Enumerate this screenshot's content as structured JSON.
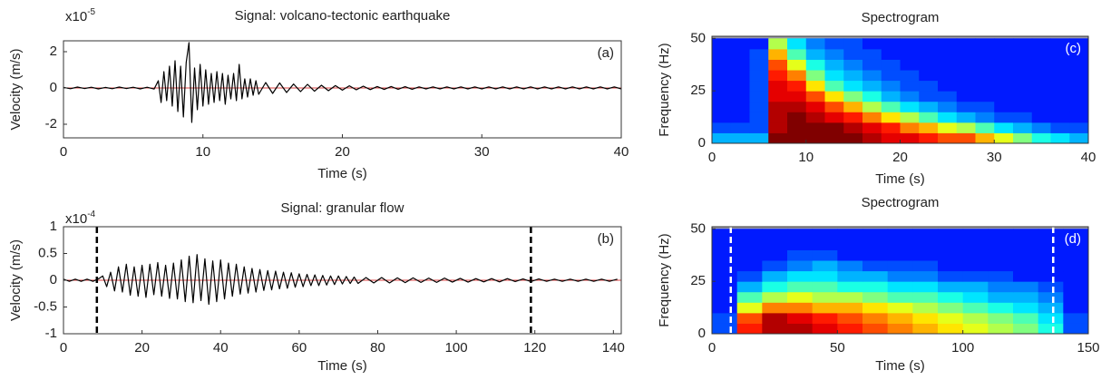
{
  "chart_data": [
    {
      "type": "line",
      "title": "Signal: volcano-tectonic earthquake",
      "xlabel": "Time (s)",
      "ylabel": "Velocity (m/s)",
      "annotation": "(a)",
      "y_multiplier": "x10",
      "y_exponent": "-5",
      "color": "#000000",
      "xlim": [
        0,
        40
      ],
      "xticks": [
        0,
        10,
        20,
        30,
        40
      ],
      "ylim": [
        -2.75,
        2.6
      ],
      "yticks": [
        -2,
        0,
        2
      ],
      "x": [
        0,
        0.5,
        1,
        1.5,
        2,
        2.5,
        3,
        3.5,
        4,
        4.5,
        5,
        5.5,
        6,
        6.5,
        6.8,
        7.0,
        7.2,
        7.4,
        7.6,
        7.8,
        8.0,
        8.2,
        8.4,
        8.6,
        8.8,
        9.0,
        9.2,
        9.4,
        9.6,
        9.8,
        10.0,
        10.2,
        10.4,
        10.6,
        10.8,
        11.0,
        11.2,
        11.4,
        11.6,
        11.8,
        12.0,
        12.2,
        12.4,
        12.6,
        12.8,
        13.0,
        13.2,
        13.4,
        13.6,
        13.8,
        14.0,
        14.5,
        15,
        15.5,
        16,
        16.5,
        17,
        17.5,
        18,
        18.5,
        19,
        19.5,
        20,
        20.5,
        21,
        21.5,
        22,
        22.5,
        23,
        23.5,
        24,
        24.5,
        25,
        25.5,
        26,
        26.5,
        27,
        27.5,
        28,
        28.5,
        29,
        29.5,
        30,
        30.5,
        31,
        31.5,
        32,
        32.5,
        33,
        33.5,
        34,
        34.5,
        35,
        35.5,
        36,
        36.5,
        37,
        37.5,
        38,
        38.5,
        39,
        39.5,
        40
      ],
      "values": [
        0.03,
        -0.04,
        0.05,
        -0.03,
        0.04,
        -0.05,
        0.03,
        -0.04,
        0.05,
        -0.03,
        0.04,
        -0.05,
        0.04,
        -0.06,
        0.4,
        -0.8,
        0.9,
        -0.7,
        1.2,
        -1.0,
        1.5,
        -1.3,
        1.2,
        -1.6,
        1.4,
        2.5,
        -1.9,
        1.1,
        -1.2,
        1.3,
        -1.0,
        1.0,
        -0.9,
        0.8,
        -0.8,
        0.9,
        -0.7,
        0.8,
        -0.9,
        0.7,
        -0.6,
        0.8,
        -0.7,
        1.3,
        -0.6,
        0.5,
        -0.5,
        0.5,
        -0.4,
        0.4,
        -0.35,
        0.3,
        -0.3,
        0.28,
        -0.25,
        0.22,
        -0.2,
        0.2,
        -0.18,
        0.15,
        -0.15,
        0.13,
        -0.12,
        0.12,
        -0.1,
        0.1,
        -0.09,
        0.08,
        -0.08,
        0.08,
        -0.07,
        0.07,
        -0.07,
        0.06,
        -0.05,
        0.06,
        -0.05,
        0.06,
        -0.05,
        0.06,
        -0.05,
        0.06,
        -0.05,
        0.06,
        -0.05,
        0.06,
        -0.05,
        0.06,
        -0.05,
        0.06,
        -0.05,
        0.06,
        -0.05,
        0.06,
        -0.05,
        0.06,
        -0.05,
        0.06,
        -0.05,
        0.06,
        -0.05,
        0.06,
        -0.05
      ]
    },
    {
      "type": "line",
      "title": "Signal: granular flow",
      "xlabel": "Time (s)",
      "ylabel": "Velocity (m/s)",
      "annotation": "(b)",
      "y_multiplier": "x10",
      "y_exponent": "-4",
      "color": "#000000",
      "xlim": [
        0,
        142
      ],
      "xticks": [
        0,
        20,
        40,
        60,
        80,
        100,
        120,
        140
      ],
      "ylim": [
        -1,
        1
      ],
      "yticks": [
        -1,
        -0.5,
        0,
        0.5,
        1
      ],
      "vlines": [
        8.5,
        119
      ],
      "vline_color": "#000000",
      "x": [
        0,
        1.5,
        3,
        4.5,
        6,
        7.5,
        9,
        10,
        11,
        12,
        13,
        14,
        15,
        16,
        17,
        18,
        19,
        20,
        21,
        22,
        23,
        24,
        25,
        26,
        27,
        28,
        29,
        30,
        31,
        32,
        33,
        34,
        35,
        36,
        37,
        38,
        39,
        40,
        41,
        42,
        43,
        44,
        45,
        46,
        47,
        48,
        49,
        50,
        51,
        52,
        53,
        54,
        55,
        56,
        57,
        58,
        59,
        60,
        61,
        62,
        63,
        64,
        65,
        66,
        67,
        68,
        69,
        70,
        71,
        72,
        73,
        74,
        75,
        77,
        79,
        81,
        83,
        85,
        87,
        89,
        91,
        93,
        95,
        97,
        99,
        101,
        103,
        105,
        107,
        109,
        111,
        113,
        115,
        117,
        119,
        121,
        123,
        125,
        127,
        129,
        131,
        133,
        135,
        137,
        139,
        141
      ],
      "values": [
        0.02,
        -0.02,
        0.02,
        -0.02,
        0.02,
        -0.02,
        0.03,
        0.08,
        -0.12,
        0.15,
        -0.2,
        0.25,
        -0.22,
        0.3,
        -0.28,
        0.25,
        -0.3,
        0.28,
        -0.32,
        0.3,
        -0.27,
        0.33,
        -0.3,
        0.28,
        -0.34,
        0.32,
        -0.35,
        0.38,
        -0.4,
        0.45,
        -0.42,
        0.48,
        -0.38,
        0.4,
        -0.45,
        0.36,
        -0.4,
        0.38,
        -0.35,
        0.32,
        -0.3,
        0.3,
        -0.26,
        0.25,
        -0.24,
        0.22,
        -0.22,
        0.2,
        -0.19,
        0.18,
        -0.18,
        0.17,
        -0.16,
        0.15,
        -0.15,
        0.14,
        -0.13,
        0.12,
        -0.12,
        0.11,
        -0.1,
        0.1,
        -0.1,
        0.09,
        -0.09,
        0.08,
        -0.08,
        0.08,
        -0.07,
        0.07,
        -0.06,
        0.06,
        -0.06,
        0.05,
        -0.05,
        0.05,
        -0.05,
        0.045,
        -0.045,
        0.045,
        -0.04,
        0.04,
        -0.04,
        0.04,
        -0.035,
        0.035,
        -0.035,
        0.03,
        -0.03,
        0.03,
        -0.03,
        0.03,
        -0.025,
        0.025,
        -0.025,
        0.025,
        -0.02,
        0.02,
        -0.02,
        0.02,
        -0.02,
        0.02,
        -0.02,
        0.02,
        -0.02,
        0.02
      ]
    },
    {
      "type": "heatmap",
      "title": "Spectrogram",
      "xlabel": "Time (s)",
      "ylabel": "Frequency (Hz)",
      "annotation": "(c)",
      "colormap": "jet",
      "zlim": [
        0,
        1
      ],
      "xlim": [
        0,
        40
      ],
      "xticks": [
        0,
        10,
        20,
        30,
        40
      ],
      "ylim": [
        0,
        51
      ],
      "yticks": [
        0,
        25,
        50
      ],
      "xbins": [
        0,
        2,
        4,
        6,
        8,
        10,
        12,
        14,
        16,
        18,
        20,
        22,
        24,
        26,
        28,
        30,
        32,
        34,
        36,
        38,
        40
      ],
      "ybins": [
        0,
        5,
        10,
        15,
        20,
        25,
        30,
        35,
        40,
        45,
        50
      ],
      "z": [
        [
          0.3,
          0.3,
          0.3,
          1,
          1,
          1,
          1,
          1,
          0.95,
          0.9,
          0.9,
          0.85,
          0.8,
          0.8,
          0.7,
          0.6,
          0.5,
          0.4,
          0.35,
          0.3
        ],
        [
          0.2,
          0.2,
          0.2,
          0.95,
          1,
          1,
          1,
          0.95,
          0.9,
          0.85,
          0.75,
          0.7,
          0.6,
          0.55,
          0.45,
          0.35,
          0.3,
          0.25,
          0.2,
          0.2
        ],
        [
          0.15,
          0.15,
          0.2,
          0.95,
          1,
          0.95,
          0.9,
          0.85,
          0.75,
          0.65,
          0.55,
          0.45,
          0.35,
          0.3,
          0.25,
          0.2,
          0.2,
          0.15,
          0.15,
          0.15
        ],
        [
          0.15,
          0.15,
          0.2,
          0.95,
          0.95,
          0.9,
          0.8,
          0.7,
          0.55,
          0.45,
          0.35,
          0.3,
          0.25,
          0.2,
          0.2,
          0.15,
          0.15,
          0.15,
          0.15,
          0.15
        ],
        [
          0.15,
          0.15,
          0.2,
          0.9,
          0.9,
          0.8,
          0.65,
          0.5,
          0.4,
          0.3,
          0.25,
          0.2,
          0.2,
          0.15,
          0.15,
          0.15,
          0.15,
          0.15,
          0.15,
          0.15
        ],
        [
          0.15,
          0.15,
          0.2,
          0.9,
          0.85,
          0.65,
          0.45,
          0.35,
          0.3,
          0.25,
          0.2,
          0.2,
          0.15,
          0.15,
          0.15,
          0.15,
          0.15,
          0.15,
          0.15,
          0.15
        ],
        [
          0.15,
          0.15,
          0.2,
          0.85,
          0.75,
          0.5,
          0.35,
          0.3,
          0.25,
          0.2,
          0.2,
          0.15,
          0.15,
          0.15,
          0.15,
          0.15,
          0.15,
          0.15,
          0.15,
          0.15
        ],
        [
          0.15,
          0.15,
          0.2,
          0.8,
          0.6,
          0.4,
          0.3,
          0.25,
          0.2,
          0.2,
          0.15,
          0.15,
          0.15,
          0.15,
          0.15,
          0.15,
          0.15,
          0.15,
          0.15,
          0.15
        ],
        [
          0.15,
          0.15,
          0.2,
          0.7,
          0.45,
          0.3,
          0.25,
          0.2,
          0.2,
          0.15,
          0.15,
          0.15,
          0.15,
          0.15,
          0.15,
          0.15,
          0.15,
          0.15,
          0.15,
          0.15
        ],
        [
          0.15,
          0.15,
          0.15,
          0.55,
          0.35,
          0.25,
          0.2,
          0.2,
          0.15,
          0.15,
          0.15,
          0.15,
          0.15,
          0.15,
          0.15,
          0.15,
          0.15,
          0.15,
          0.15,
          0.15
        ]
      ]
    },
    {
      "type": "heatmap",
      "title": "Spectrogram",
      "xlabel": "Time (s)",
      "ylabel": "Frequency (Hz)",
      "annotation": "(d)",
      "colormap": "jet",
      "zlim": [
        0,
        1
      ],
      "xlim": [
        0,
        150
      ],
      "xticks": [
        0,
        50,
        100,
        150
      ],
      "ylim": [
        0,
        51
      ],
      "yticks": [
        0,
        25,
        50
      ],
      "vlines": [
        7.5,
        136
      ],
      "vline_color": "#ffffff",
      "xbins": [
        0,
        10,
        20,
        30,
        40,
        50,
        60,
        70,
        80,
        90,
        100,
        110,
        120,
        130,
        140,
        150
      ],
      "ybins": [
        0,
        5,
        10,
        15,
        20,
        25,
        30,
        35,
        40,
        45,
        50
      ],
      "z": [
        [
          0.2,
          0.85,
          0.95,
          0.95,
          0.9,
          0.85,
          0.8,
          0.75,
          0.7,
          0.65,
          0.6,
          0.55,
          0.5,
          0.4,
          0.2
        ],
        [
          0.2,
          0.8,
          0.95,
          0.9,
          0.85,
          0.8,
          0.75,
          0.7,
          0.65,
          0.6,
          0.55,
          0.5,
          0.45,
          0.35,
          0.2
        ],
        [
          0.15,
          0.6,
          0.75,
          0.75,
          0.7,
          0.7,
          0.65,
          0.6,
          0.55,
          0.5,
          0.45,
          0.4,
          0.35,
          0.3,
          0.15
        ],
        [
          0.15,
          0.45,
          0.55,
          0.6,
          0.55,
          0.55,
          0.5,
          0.45,
          0.45,
          0.4,
          0.35,
          0.3,
          0.3,
          0.25,
          0.15
        ],
        [
          0.15,
          0.3,
          0.4,
          0.45,
          0.45,
          0.4,
          0.4,
          0.35,
          0.35,
          0.3,
          0.3,
          0.25,
          0.25,
          0.2,
          0.15
        ],
        [
          0.15,
          0.2,
          0.3,
          0.35,
          0.35,
          0.3,
          0.3,
          0.25,
          0.25,
          0.2,
          0.2,
          0.2,
          0.15,
          0.15,
          0.15
        ],
        [
          0.15,
          0.15,
          0.2,
          0.25,
          0.3,
          0.25,
          0.2,
          0.2,
          0.2,
          0.15,
          0.15,
          0.15,
          0.15,
          0.15,
          0.15
        ],
        [
          0.15,
          0.15,
          0.15,
          0.2,
          0.2,
          0.15,
          0.15,
          0.15,
          0.15,
          0.15,
          0.15,
          0.15,
          0.15,
          0.15,
          0.15
        ],
        [
          0.15,
          0.15,
          0.15,
          0.15,
          0.15,
          0.15,
          0.15,
          0.15,
          0.15,
          0.15,
          0.15,
          0.15,
          0.15,
          0.15,
          0.15
        ],
        [
          0.15,
          0.15,
          0.15,
          0.15,
          0.15,
          0.15,
          0.15,
          0.15,
          0.15,
          0.15,
          0.15,
          0.15,
          0.15,
          0.15,
          0.15
        ]
      ]
    }
  ]
}
